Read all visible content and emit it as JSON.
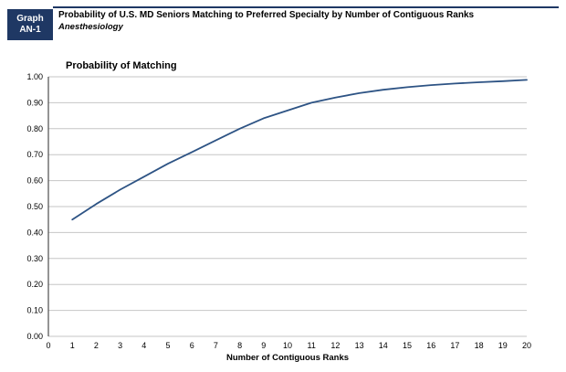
{
  "header": {
    "graph_label_line1": "Graph",
    "graph_label_line2": "AN-1",
    "title": "Probability of U.S. MD Seniors Matching to Preferred Specialty by Number of Contiguous Ranks",
    "subtitle": "Anesthesiology"
  },
  "colors": {
    "header_box": "#1F3864",
    "top_rule": "#1F3864",
    "line": "#2D5384",
    "grid": "#C6C6C6",
    "axis": "#4D4D4D",
    "tick_text": "#000000"
  },
  "chart_data": {
    "type": "line",
    "title": "Probability of Matching",
    "xlabel": "Number of Contiguous Ranks",
    "ylabel": "Probability of Matching",
    "x": [
      1,
      2,
      3,
      4,
      5,
      6,
      7,
      8,
      9,
      10,
      11,
      12,
      13,
      14,
      15,
      16,
      17,
      18,
      19,
      20
    ],
    "values": [
      0.45,
      0.51,
      0.565,
      0.615,
      0.665,
      0.71,
      0.755,
      0.8,
      0.84,
      0.87,
      0.9,
      0.92,
      0.937,
      0.95,
      0.96,
      0.968,
      0.974,
      0.979,
      0.983,
      0.988
    ],
    "xlim": [
      0,
      20
    ],
    "ylim": [
      0.0,
      1.0
    ],
    "x_ticks": [
      0,
      1,
      2,
      3,
      4,
      5,
      6,
      7,
      8,
      9,
      10,
      11,
      12,
      13,
      14,
      15,
      16,
      17,
      18,
      19,
      20
    ],
    "y_ticks": [
      "0.00",
      "0.10",
      "0.20",
      "0.30",
      "0.40",
      "0.50",
      "0.60",
      "0.70",
      "0.80",
      "0.90",
      "1.00"
    ],
    "grid": true,
    "legend": "none"
  }
}
